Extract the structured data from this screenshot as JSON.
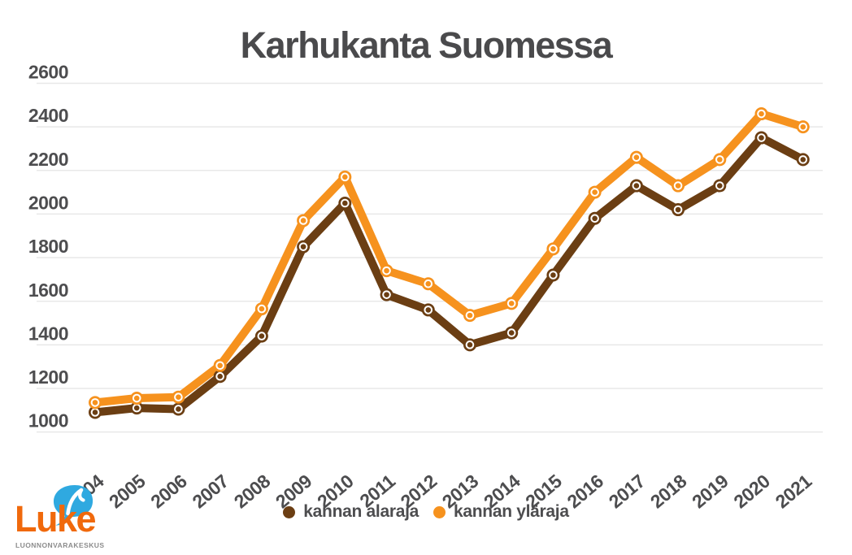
{
  "title": "Karhukanta Suomessa",
  "chart_data": {
    "type": "line",
    "title": "Karhukanta Suomessa",
    "categories": [
      "2004",
      "2005",
      "2006",
      "2007",
      "2008",
      "2009",
      "2010",
      "2011",
      "2012",
      "2013",
      "2014",
      "2015",
      "2016",
      "2017",
      "2018",
      "2019",
      "2020",
      "2021"
    ],
    "series": [
      {
        "name": "kannan alaraja",
        "color": "#6B3E13",
        "values": [
          1090,
          1110,
          1105,
          1255,
          1440,
          1850,
          2050,
          1630,
          1560,
          1400,
          1455,
          1720,
          1980,
          2130,
          2020,
          2130,
          2350,
          2250
        ]
      },
      {
        "name": "kannan yläraja",
        "color": "#F6921E",
        "values": [
          1135,
          1155,
          1160,
          1305,
          1565,
          1970,
          2170,
          1740,
          1680,
          1535,
          1590,
          1840,
          2100,
          2260,
          2130,
          2250,
          2460,
          2400
        ]
      }
    ],
    "ylim": [
      1000,
      2600
    ],
    "yticks": [
      1000,
      1200,
      1400,
      1600,
      1800,
      2000,
      2200,
      2400,
      2600
    ],
    "grid": true,
    "legend_position": "bottom",
    "marker": "ring-dot"
  },
  "legend": {
    "items": [
      {
        "label": "kannan alaraja",
        "color": "#6B3E13"
      },
      {
        "label": "kannan yläraja",
        "color": "#F6921E"
      }
    ]
  },
  "logo": {
    "brand": "Luke",
    "subtitle": "LUONNONVARAKESKUS",
    "brand_color": "#F0690C",
    "leaf_color": "#2FA9E0"
  },
  "styles": {
    "title_color": "#4A4A4C",
    "tick_color": "#4D4D4F",
    "grid_color": "#E8E8E8",
    "background": "#FFFFFF"
  }
}
